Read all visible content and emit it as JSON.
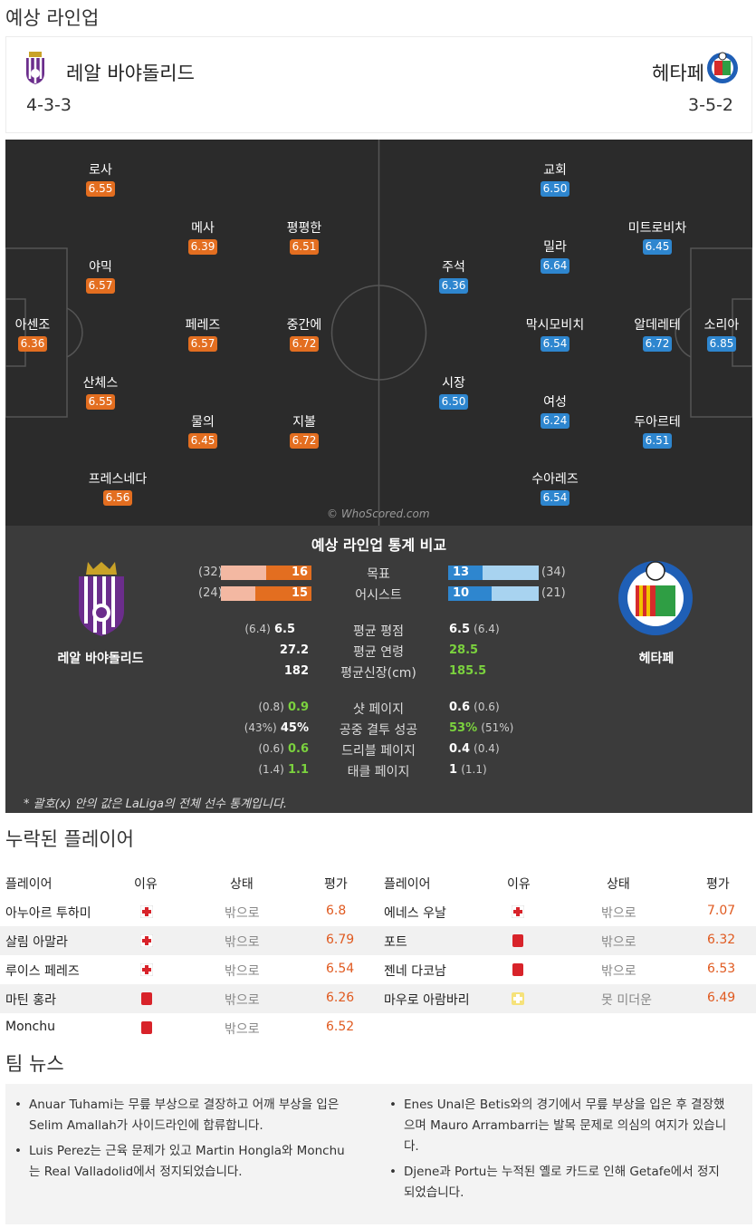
{
  "sections": {
    "lineup_title": "예상 라인업",
    "missing_title": "누락된 플레이어",
    "news_title": "팀 뉴스"
  },
  "home": {
    "name": "레알 바야돌리드",
    "formation": "4-3-3"
  },
  "away": {
    "name": "헤타페",
    "formation": "3-5-2"
  },
  "watermark": "© WhoScored.com",
  "home_players": [
    {
      "name": "로사",
      "rating": "6.55"
    },
    {
      "name": "메사",
      "rating": "6.39"
    },
    {
      "name": "평평한",
      "rating": "6.51"
    },
    {
      "name": "야믹",
      "rating": "6.57"
    },
    {
      "name": "아센조",
      "rating": "6.36"
    },
    {
      "name": "페레즈",
      "rating": "6.57"
    },
    {
      "name": "중간에",
      "rating": "6.72"
    },
    {
      "name": "산체스",
      "rating": "6.55"
    },
    {
      "name": "물의",
      "rating": "6.45"
    },
    {
      "name": "지볼",
      "rating": "6.72"
    },
    {
      "name": "프레스네다",
      "rating": "6.56"
    }
  ],
  "away_players": [
    {
      "name": "교회",
      "rating": "6.50"
    },
    {
      "name": "미트로비차",
      "rating": "6.45"
    },
    {
      "name": "밀라",
      "rating": "6.64"
    },
    {
      "name": "주석",
      "rating": "6.36"
    },
    {
      "name": "막시모비치",
      "rating": "6.54"
    },
    {
      "name": "알데레테",
      "rating": "6.72"
    },
    {
      "name": "소리아",
      "rating": "6.85"
    },
    {
      "name": "시장",
      "rating": "6.50"
    },
    {
      "name": "여성",
      "rating": "6.24"
    },
    {
      "name": "두아르테",
      "rating": "6.51"
    },
    {
      "name": "수아레즈",
      "rating": "6.54"
    }
  ],
  "stats": {
    "title": "예상 라인업 통계 비교",
    "home_label": "레알 바야돌리드",
    "away_label": "헤타페",
    "bars": [
      {
        "label": "목표",
        "home": "16",
        "home_league": "(32)",
        "away": "13",
        "away_league": "(34)",
        "home_frac": 0.5,
        "away_frac": 0.38
      },
      {
        "label": "어시스트",
        "home": "15",
        "home_league": "(24)",
        "away": "10",
        "away_league": "(21)",
        "home_frac": 0.62,
        "away_frac": 0.48
      }
    ],
    "rows1": [
      {
        "label": "평균 평점",
        "home": "6.5",
        "home_league": "(6.4)",
        "away": "6.5",
        "away_league": "(6.4)"
      },
      {
        "label": "평균 연령",
        "home": "27.2",
        "home_league": "",
        "away": "28.5",
        "away_league": ""
      },
      {
        "label": "평균신장(cm)",
        "home": "182",
        "home_league": "",
        "away": "185.5",
        "away_league": ""
      }
    ],
    "rows2": [
      {
        "label": "샷 페이지",
        "home": "0.9",
        "home_league": "(0.8)",
        "away": "0.6",
        "away_league": "(0.6)"
      },
      {
        "label": "공중 결투 성공",
        "home": "45%",
        "home_league": "(43%)",
        "away": "53%",
        "away_league": "(51%)"
      },
      {
        "label": "드리블 페이지",
        "home": "0.6",
        "home_league": "(0.6)",
        "away": "0.4",
        "away_league": "(0.4)"
      },
      {
        "label": "태클 페이지",
        "home": "1.1",
        "home_league": "(1.4)",
        "away": "1",
        "away_league": "(1.1)"
      }
    ],
    "footnote": "* 괄호(x) 안의 값은 LaLiga의 전체 선수 통계입니다."
  },
  "missing": {
    "headers": {
      "player": "플레이어",
      "reason": "이유",
      "status": "상태",
      "rating": "평가"
    },
    "home": [
      {
        "player": "아누아르 투하미",
        "reason": "injury",
        "status": "밖으로",
        "rating": "6.8"
      },
      {
        "player": "살림 아말라",
        "reason": "injury",
        "status": "밖으로",
        "rating": "6.79"
      },
      {
        "player": "루이스 페레즈",
        "reason": "injury",
        "status": "밖으로",
        "rating": "6.54"
      },
      {
        "player": "마틴 홍라",
        "reason": "red-card",
        "status": "밖으로",
        "rating": "6.26"
      },
      {
        "player": "Monchu",
        "reason": "red-card",
        "status": "밖으로",
        "rating": "6.52"
      }
    ],
    "away": [
      {
        "player": "에네스 우날",
        "reason": "injury",
        "status": "밖으로",
        "rating": "7.07"
      },
      {
        "player": "포트",
        "reason": "red-card",
        "status": "밖으로",
        "rating": "6.32"
      },
      {
        "player": "젠네 다코남",
        "reason": "red-card",
        "status": "밖으로",
        "rating": "6.53"
      },
      {
        "player": "마우로 아람바리",
        "reason": "doubtful",
        "status": "못 미더운",
        "rating": "6.49"
      }
    ]
  },
  "news": {
    "home": [
      "Anuar Tuhami는 무릎 부상으로 결장하고 어깨 부상을 입은 Selim Amallah가 사이드라인에 합류합니다.",
      "Luis Perez는 근육 문제가 있고 Martin Hongla와 Monchu는 Real Valladolid에서 정지되었습니다."
    ],
    "away": [
      "Enes Unal은 Betis와의 경기에서 무릎 부상을 입은 후 결장했으며 Mauro Arrambarri는 발목 문제로 의심의 여지가 있습니다.",
      "Djene과 Portu는 누적된 옐로 카드로 인해 Getafe에서 정지되었습니다."
    ]
  },
  "colors": {
    "home_rating": "#e36e20",
    "away_rating": "#2e86cf",
    "best_rating": "#2e86cf",
    "pitch": "#2b2b2b",
    "stats_bg": "#3b3b3b",
    "missing_rating": "#e05a20"
  }
}
